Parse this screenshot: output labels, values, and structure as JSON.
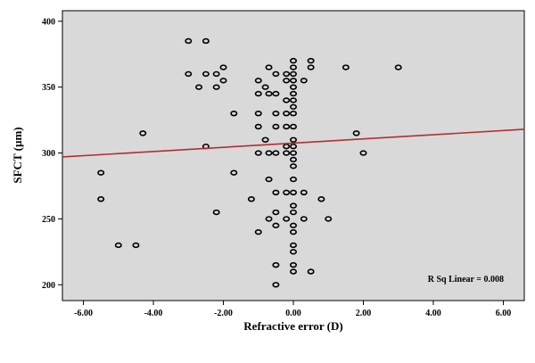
{
  "chart_data": {
    "type": "scatter",
    "xlabel": "Refractive error (D)",
    "ylabel": "SFCT (µm)",
    "xlim": [
      -6.6,
      6.6
    ],
    "ylim": [
      188,
      408
    ],
    "x_ticks": [
      -6,
      -4,
      -2,
      0,
      2,
      4,
      6
    ],
    "x_tick_labels": [
      "-6.00",
      "-4.00",
      "-2.00",
      "0.00",
      "2.00",
      "4.00",
      "6.00"
    ],
    "y_ticks": [
      200,
      250,
      300,
      350,
      400
    ],
    "y_tick_labels": [
      "200",
      "250",
      "300",
      "350",
      "400"
    ],
    "grid": false,
    "background_color": "#d9d9d9",
    "marker_color": "#000000",
    "fit_line_color": "#b03030",
    "fit_line": {
      "type": "linear",
      "x": [
        -6.6,
        6.6
      ],
      "y": [
        297,
        318
      ]
    },
    "annotation": "R Sq Linear = 0.008",
    "points": [
      {
        "x": -3.0,
        "y": 385
      },
      {
        "x": -2.5,
        "y": 385
      },
      {
        "x": -3.0,
        "y": 360
      },
      {
        "x": -2.5,
        "y": 360
      },
      {
        "x": -2.2,
        "y": 360
      },
      {
        "x": -2.0,
        "y": 365
      },
      {
        "x": -2.0,
        "y": 355
      },
      {
        "x": -2.7,
        "y": 350
      },
      {
        "x": -2.2,
        "y": 350
      },
      {
        "x": -1.0,
        "y": 355
      },
      {
        "x": -0.7,
        "y": 365
      },
      {
        "x": -0.5,
        "y": 360
      },
      {
        "x": -1.0,
        "y": 345
      },
      {
        "x": -0.7,
        "y": 345
      },
      {
        "x": -0.5,
        "y": 345
      },
      {
        "x": -0.8,
        "y": 350
      },
      {
        "x": -1.7,
        "y": 330
      },
      {
        "x": -1.0,
        "y": 330
      },
      {
        "x": -0.5,
        "y": 330
      },
      {
        "x": -0.2,
        "y": 330
      },
      {
        "x": -1.0,
        "y": 320
      },
      {
        "x": -0.5,
        "y": 320
      },
      {
        "x": -0.2,
        "y": 320
      },
      {
        "x": -4.3,
        "y": 315
      },
      {
        "x": -2.5,
        "y": 305
      },
      {
        "x": -0.8,
        "y": 310
      },
      {
        "x": -0.2,
        "y": 305
      },
      {
        "x": -1.0,
        "y": 300
      },
      {
        "x": -0.7,
        "y": 300
      },
      {
        "x": -0.5,
        "y": 300
      },
      {
        "x": -0.2,
        "y": 300
      },
      {
        "x": -1.7,
        "y": 285
      },
      {
        "x": -0.7,
        "y": 280
      },
      {
        "x": -5.5,
        "y": 285
      },
      {
        "x": -5.5,
        "y": 265
      },
      {
        "x": -1.2,
        "y": 265
      },
      {
        "x": -0.5,
        "y": 270
      },
      {
        "x": -0.2,
        "y": 270
      },
      {
        "x": -2.2,
        "y": 255
      },
      {
        "x": -0.5,
        "y": 255
      },
      {
        "x": -0.2,
        "y": 250
      },
      {
        "x": -0.7,
        "y": 250
      },
      {
        "x": -1.0,
        "y": 240
      },
      {
        "x": -0.5,
        "y": 245
      },
      {
        "x": -5.0,
        "y": 230
      },
      {
        "x": -4.5,
        "y": 230
      },
      {
        "x": -0.5,
        "y": 215
      },
      {
        "x": -0.5,
        "y": 200
      },
      {
        "x": 0.0,
        "y": 370
      },
      {
        "x": 0.0,
        "y": 365
      },
      {
        "x": 0.0,
        "y": 360
      },
      {
        "x": 0.0,
        "y": 355
      },
      {
        "x": 0.0,
        "y": 350
      },
      {
        "x": 0.0,
        "y": 345
      },
      {
        "x": 0.0,
        "y": 340
      },
      {
        "x": 0.0,
        "y": 335
      },
      {
        "x": 0.0,
        "y": 330
      },
      {
        "x": 0.0,
        "y": 320
      },
      {
        "x": 0.0,
        "y": 310
      },
      {
        "x": 0.0,
        "y": 305
      },
      {
        "x": 0.0,
        "y": 300
      },
      {
        "x": 0.0,
        "y": 295
      },
      {
        "x": 0.0,
        "y": 290
      },
      {
        "x": 0.0,
        "y": 280
      },
      {
        "x": 0.0,
        "y": 270
      },
      {
        "x": 0.0,
        "y": 260
      },
      {
        "x": 0.0,
        "y": 255
      },
      {
        "x": 0.0,
        "y": 245
      },
      {
        "x": 0.0,
        "y": 240
      },
      {
        "x": 0.0,
        "y": 230
      },
      {
        "x": 0.0,
        "y": 225
      },
      {
        "x": 0.0,
        "y": 215
      },
      {
        "x": 0.0,
        "y": 210
      },
      {
        "x": -0.2,
        "y": 360
      },
      {
        "x": -0.2,
        "y": 355
      },
      {
        "x": -0.2,
        "y": 340
      },
      {
        "x": 0.3,
        "y": 355
      },
      {
        "x": 0.5,
        "y": 370
      },
      {
        "x": 0.5,
        "y": 365
      },
      {
        "x": 0.3,
        "y": 270
      },
      {
        "x": 0.3,
        "y": 250
      },
      {
        "x": 0.5,
        "y": 210
      },
      {
        "x": 0.8,
        "y": 265
      },
      {
        "x": 1.0,
        "y": 250
      },
      {
        "x": 1.5,
        "y": 365
      },
      {
        "x": 1.8,
        "y": 315
      },
      {
        "x": 2.0,
        "y": 300
      },
      {
        "x": 3.0,
        "y": 365
      }
    ]
  }
}
